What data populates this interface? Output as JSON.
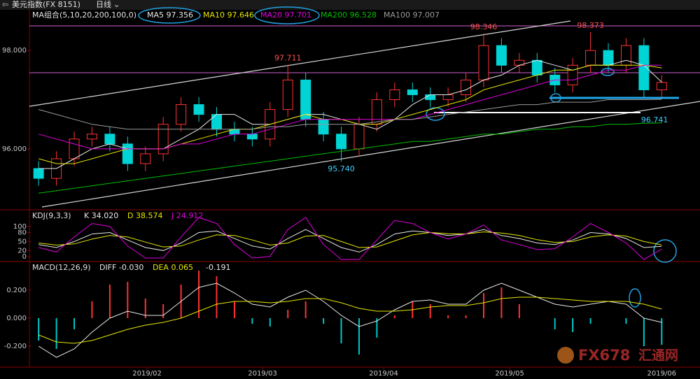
{
  "header": {
    "title": "美元指数(FX 8151)",
    "period": "日线"
  },
  "watermark": {
    "brand": "FX678",
    "site": "汇通网"
  },
  "chart_data": [
    {
      "type": "candlestick",
      "title": "MA组合(5,10,20,200,100,0)",
      "xlim": [
        -0.4,
        37.15
      ],
      "ylim": [
        94.79,
        98.6
      ],
      "yticks": [
        {
          "value": 96,
          "label": "96.000"
        },
        {
          "value": 98,
          "label": "98.000"
        }
      ],
      "up_color": "#ff3232",
      "down_color": "#00d4d4",
      "open": [
        95.6,
        95.4,
        95.8,
        96.2,
        96.3,
        96.1,
        95.7,
        95.9,
        96.5,
        96.9,
        96.7,
        96.4,
        96.3,
        96.2,
        96.8,
        97.4,
        96.6,
        96.3,
        96.0,
        96.5,
        97.0,
        97.2,
        97.1,
        97.0,
        97.1,
        97.4,
        98.1,
        97.7,
        97.8,
        97.5,
        97.3,
        97.7,
        98.0,
        97.7,
        98.1,
        97.2
      ],
      "high": [
        95.75,
        95.95,
        96.35,
        96.45,
        96.45,
        96.25,
        96.05,
        96.65,
        97.05,
        97.05,
        96.85,
        96.55,
        96.45,
        96.95,
        97.711,
        97.55,
        96.75,
        96.45,
        96.65,
        97.15,
        97.35,
        97.35,
        97.25,
        97.25,
        97.55,
        98.346,
        98.25,
        97.95,
        97.95,
        97.65,
        97.85,
        98.373,
        98.15,
        98.25,
        98.25,
        97.5
      ],
      "low": [
        95.25,
        95.25,
        95.65,
        96.05,
        95.95,
        95.55,
        95.55,
        95.75,
        96.35,
        96.55,
        96.25,
        96.15,
        96.05,
        96.05,
        96.65,
        96.45,
        96.15,
        95.74,
        95.85,
        96.35,
        96.85,
        96.95,
        96.85,
        96.85,
        96.95,
        97.25,
        97.55,
        97.55,
        97.35,
        97.15,
        97.15,
        97.55,
        97.55,
        97.55,
        97.05,
        97.05
      ],
      "close": [
        95.4,
        95.8,
        96.2,
        96.3,
        96.1,
        95.7,
        95.9,
        96.5,
        96.9,
        96.7,
        96.4,
        96.3,
        96.2,
        96.8,
        97.4,
        96.6,
        96.3,
        96.0,
        96.5,
        97.0,
        97.2,
        97.1,
        97.0,
        97.1,
        97.4,
        98.1,
        97.7,
        97.8,
        97.5,
        97.3,
        97.7,
        98.0,
        97.7,
        98.1,
        97.2,
        97.35
      ],
      "annotations": [
        {
          "x": 25,
          "y": 98.346,
          "label": "98.346",
          "color": "#ff5050"
        },
        {
          "x": 31,
          "y": 98.373,
          "label": "98.373",
          "color": "#ff5050"
        },
        {
          "x": 14,
          "y": 97.711,
          "label": "97.711",
          "color": "#ff5050"
        },
        {
          "x": 17,
          "y": 95.74,
          "label": "95.740",
          "color": "#40d0ff"
        },
        {
          "x": 34.6,
          "y": 96.741,
          "label": "96.741",
          "color": "#40d0ff"
        }
      ],
      "series": [
        {
          "name": "MA5",
          "color": "#e8e8e8",
          "legend_value": "97.356",
          "values": [
            95.6,
            95.6,
            95.8,
            96.0,
            96.1,
            96.0,
            96.0,
            96.0,
            96.2,
            96.4,
            96.7,
            96.7,
            96.5,
            96.5,
            96.6,
            96.7,
            96.7,
            96.6,
            96.5,
            96.4,
            96.6,
            96.9,
            97.1,
            97.1,
            97.2,
            97.4,
            97.5,
            97.7,
            97.8,
            97.7,
            97.6,
            97.7,
            97.7,
            97.8,
            97.7,
            97.356
          ]
        },
        {
          "name": "MA10",
          "color": "#e6e600",
          "legend_value": "97.646",
          "values": [
            95.8,
            95.7,
            95.7,
            95.8,
            95.9,
            96.0,
            96.0,
            96.0,
            96.1,
            96.2,
            96.3,
            96.4,
            96.4,
            96.5,
            96.6,
            96.7,
            96.6,
            96.6,
            96.5,
            96.5,
            96.6,
            96.7,
            96.8,
            96.9,
            97.0,
            97.2,
            97.3,
            97.4,
            97.5,
            97.6,
            97.6,
            97.7,
            97.7,
            97.7,
            97.7,
            97.646
          ]
        },
        {
          "name": "MA20",
          "color": "#e000e0",
          "legend_value": "97.701",
          "values": [
            96.3,
            96.2,
            96.1,
            96.0,
            96.0,
            96.0,
            96.0,
            96.0,
            96.1,
            96.1,
            96.2,
            96.3,
            96.3,
            96.4,
            96.5,
            96.6,
            96.6,
            96.6,
            96.6,
            96.6,
            96.6,
            96.6,
            96.7,
            96.8,
            96.9,
            97.0,
            97.1,
            97.2,
            97.3,
            97.4,
            97.4,
            97.5,
            97.6,
            97.6,
            97.7,
            97.701
          ]
        },
        {
          "name": "MA200",
          "color": "#00c000",
          "legend_value": "96.528",
          "values": [
            95.1,
            95.15,
            95.2,
            95.25,
            95.3,
            95.35,
            95.4,
            95.45,
            95.5,
            95.55,
            95.6,
            95.65,
            95.7,
            95.75,
            95.8,
            95.85,
            95.9,
            95.95,
            96.0,
            96.05,
            96.1,
            96.15,
            96.15,
            96.2,
            96.25,
            96.3,
            96.3,
            96.35,
            96.4,
            96.4,
            96.45,
            96.45,
            96.5,
            96.5,
            96.52,
            96.528
          ]
        },
        {
          "name": "MA100",
          "color": "#9a9a9a",
          "legend_value": "97.007",
          "values": [
            96.8,
            96.7,
            96.6,
            96.5,
            96.45,
            96.4,
            96.4,
            96.4,
            96.4,
            96.4,
            96.4,
            96.4,
            96.4,
            96.45,
            96.45,
            96.5,
            96.5,
            96.5,
            96.5,
            96.55,
            96.6,
            96.6,
            96.65,
            96.7,
            96.75,
            96.8,
            96.85,
            96.9,
            96.9,
            96.95,
            96.95,
            96.95,
            97.0,
            97.0,
            97.0,
            97.007
          ]
        }
      ]
    },
    {
      "type": "line",
      "title": "KDJ(9,3,3)",
      "xlim": [
        -0.4,
        37.15
      ],
      "ylim": [
        -12,
        151
      ],
      "yticks": [
        0,
        20,
        50,
        80,
        100
      ],
      "series": [
        {
          "name": "K",
          "color": "#e8e8e8",
          "legend_value": "34.020",
          "values": [
            40,
            30,
            50,
            75,
            80,
            55,
            30,
            20,
            45,
            80,
            85,
            60,
            35,
            25,
            60,
            90,
            60,
            30,
            15,
            40,
            75,
            85,
            80,
            70,
            75,
            90,
            70,
            60,
            45,
            40,
            55,
            80,
            75,
            60,
            30,
            34.02
          ]
        },
        {
          "name": "D",
          "color": "#e6e600",
          "legend_value": "38.574",
          "values": [
            45,
            38,
            42,
            58,
            70,
            65,
            48,
            32,
            35,
            55,
            72,
            70,
            55,
            38,
            45,
            68,
            70,
            50,
            30,
            32,
            52,
            72,
            80,
            76,
            75,
            82,
            78,
            70,
            56,
            47,
            50,
            65,
            72,
            68,
            50,
            38.574
          ]
        },
        {
          "name": "J",
          "color": "#e000e0",
          "legend_value": "24.912",
          "values": [
            30,
            15,
            65,
            110,
            100,
            35,
            -5,
            -5,
            65,
            130,
            110,
            40,
            -5,
            0,
            90,
            130,
            40,
            -10,
            -10,
            55,
            120,
            110,
            80,
            58,
            75,
            105,
            55,
            40,
            23,
            26,
            65,
            110,
            80,
            45,
            -10,
            24.912
          ]
        }
      ]
    },
    {
      "type": "combo",
      "title": "MACD(12,26,9)",
      "xlim": [
        -0.4,
        37.15
      ],
      "ylim": [
        -0.35,
        0.4
      ],
      "yticks": [
        {
          "value": -0.2,
          "label": "-0.200"
        },
        {
          "value": 0,
          "label": "0.000"
        },
        {
          "value": 0.2,
          "label": "0.200"
        }
      ],
      "xticks": [
        {
          "value": 6.09,
          "label": "2019/02"
        },
        {
          "value": 12.58,
          "label": "2019/03"
        },
        {
          "value": 19.38,
          "label": "2019/04"
        },
        {
          "value": 26.46,
          "label": "2019/05"
        },
        {
          "value": 35.0,
          "label": "2019/06"
        }
      ],
      "up_color": "#ff3232",
      "down_color": "#00c8c8",
      "series": [
        {
          "name": "DIFF",
          "kind": "line",
          "color": "#e8e8e8",
          "legend_value": "-0.030",
          "values": [
            -0.2,
            -0.28,
            -0.22,
            -0.1,
            0.0,
            0.05,
            0.02,
            0.02,
            0.12,
            0.22,
            0.25,
            0.18,
            0.1,
            0.08,
            0.15,
            0.2,
            0.12,
            0.02,
            -0.06,
            -0.02,
            0.06,
            0.12,
            0.13,
            0.1,
            0.1,
            0.2,
            0.25,
            0.2,
            0.15,
            0.1,
            0.08,
            0.1,
            0.12,
            0.1,
            0.0,
            -0.03
          ]
        },
        {
          "name": "DEA",
          "kind": "line",
          "color": "#e6e600",
          "legend_value": "0.065",
          "values": [
            -0.12,
            -0.17,
            -0.18,
            -0.16,
            -0.12,
            -0.08,
            -0.05,
            -0.03,
            0.0,
            0.05,
            0.1,
            0.12,
            0.12,
            0.11,
            0.12,
            0.14,
            0.14,
            0.11,
            0.07,
            0.05,
            0.05,
            0.06,
            0.08,
            0.09,
            0.09,
            0.11,
            0.14,
            0.15,
            0.15,
            0.14,
            0.13,
            0.12,
            0.12,
            0.12,
            0.1,
            0.065
          ]
        },
        {
          "kind": "bar",
          "color": "#e8e8e8",
          "legend_value": "-0.191",
          "values": [
            -0.16,
            -0.22,
            -0.08,
            0.12,
            0.24,
            0.26,
            0.14,
            0.1,
            0.24,
            0.34,
            0.3,
            0.12,
            -0.04,
            -0.06,
            0.06,
            0.12,
            -0.04,
            -0.18,
            -0.26,
            -0.14,
            0.02,
            0.12,
            0.1,
            0.02,
            0.02,
            0.18,
            0.22,
            0.1,
            0.0,
            -0.08,
            -0.1,
            -0.04,
            0.0,
            -0.04,
            -0.2,
            -0.191
          ]
        }
      ]
    }
  ]
}
